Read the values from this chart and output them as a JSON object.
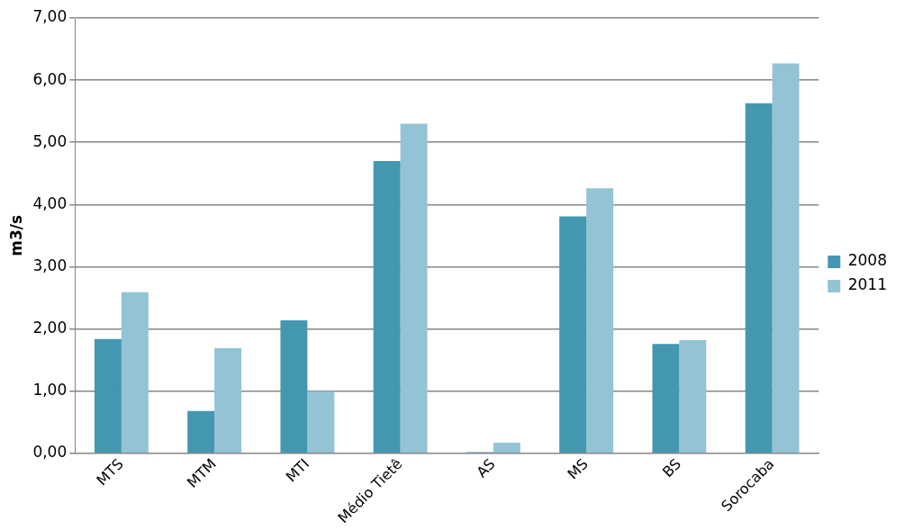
{
  "chart_data": {
    "type": "bar",
    "ylabel": "m3/s",
    "categories": [
      "MTS",
      "MTM",
      "MTI",
      "Médio Tietê",
      "AS",
      "MS",
      "BS",
      "Sorocaba"
    ],
    "series": [
      {
        "name": "2008",
        "color": "#4398b0",
        "values": [
          1.84,
          0.68,
          2.14,
          4.7,
          0.02,
          3.81,
          1.76,
          5.63
        ]
      },
      {
        "name": "2011",
        "color": "#93c3d5",
        "values": [
          2.59,
          1.69,
          1.0,
          5.3,
          0.17,
          4.26,
          1.82,
          6.27
        ]
      }
    ],
    "ylim": [
      0,
      7
    ],
    "yticks": [
      {
        "value": 0,
        "label": "0,00"
      },
      {
        "value": 1,
        "label": "1,00"
      },
      {
        "value": 2,
        "label": "2,00"
      },
      {
        "value": 3,
        "label": "3,00"
      },
      {
        "value": 4,
        "label": "4,00"
      },
      {
        "value": 5,
        "label": "5,00"
      },
      {
        "value": 6,
        "label": "6,00"
      },
      {
        "value": 7,
        "label": "7,00"
      }
    ],
    "grid": "y",
    "legend": "right"
  }
}
